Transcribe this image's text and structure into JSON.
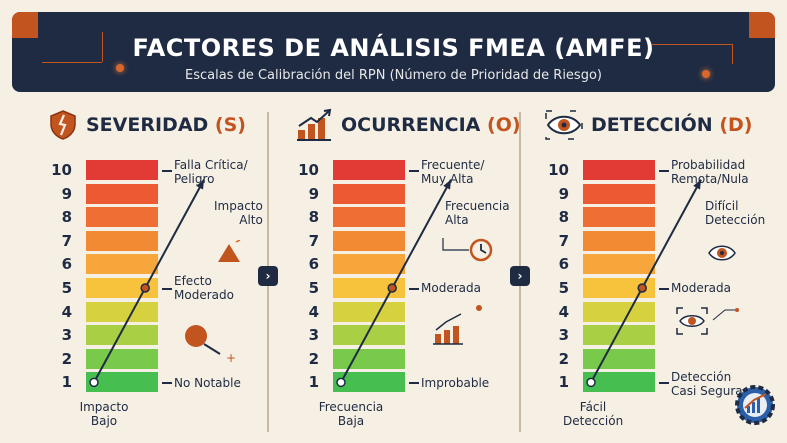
{
  "header": {
    "title": "FACTORES DE ANÁLISIS FMEA (AMFE)",
    "subtitle": "Escalas de Calibración del RPN (Número de Prioridad de Riesgo)"
  },
  "scale_numbers": [
    "10",
    "9",
    "8",
    "7",
    "6",
    "5",
    "4",
    "3",
    "2",
    "1"
  ],
  "scale_colors": [
    "#e23b36",
    "#ec5a34",
    "#ef6e33",
    "#f28a34",
    "#f6a63a",
    "#f7c23c",
    "#d6d23f",
    "#a9cf45",
    "#79c94b",
    "#46bf50"
  ],
  "columns": [
    {
      "title": "SEVERIDAD",
      "letter": "(S)",
      "icon": "broken-shield-icon",
      "top_label": [
        "Falla Crítica/",
        "Peligro"
      ],
      "high_label": [
        "Impacto",
        "Alto"
      ],
      "mid_label": [
        "Efecto",
        "Moderado"
      ],
      "low_label": [
        "No Notable"
      ],
      "bottom_label": [
        "Impacto",
        "Bajo"
      ]
    },
    {
      "title": "OCURRENCIA",
      "letter": "(O)",
      "icon": "bar-chart-up-icon",
      "top_label": [
        "Frecuente/",
        "Muy Alta"
      ],
      "high_label": [
        "Frecuencia",
        "Alta"
      ],
      "mid_label": [
        "Moderada"
      ],
      "low_label": [
        "Improbable"
      ],
      "bottom_label": [
        "Frecuencia",
        "Baja"
      ]
    },
    {
      "title": "DETECCIÓN",
      "letter": "(D)",
      "icon": "eye-icon",
      "top_label": [
        "Probabilidad",
        "Remota/Nula"
      ],
      "high_label": [
        "Difícil",
        "Detección"
      ],
      "mid_label": [
        "Moderada"
      ],
      "low_label": [
        "Detección",
        "Casi Segura"
      ],
      "bottom_label": [
        "Fácil",
        "Detección"
      ]
    }
  ],
  "nav_arrow": "›",
  "accent": "#c2541f",
  "navy": "#1e2b43"
}
